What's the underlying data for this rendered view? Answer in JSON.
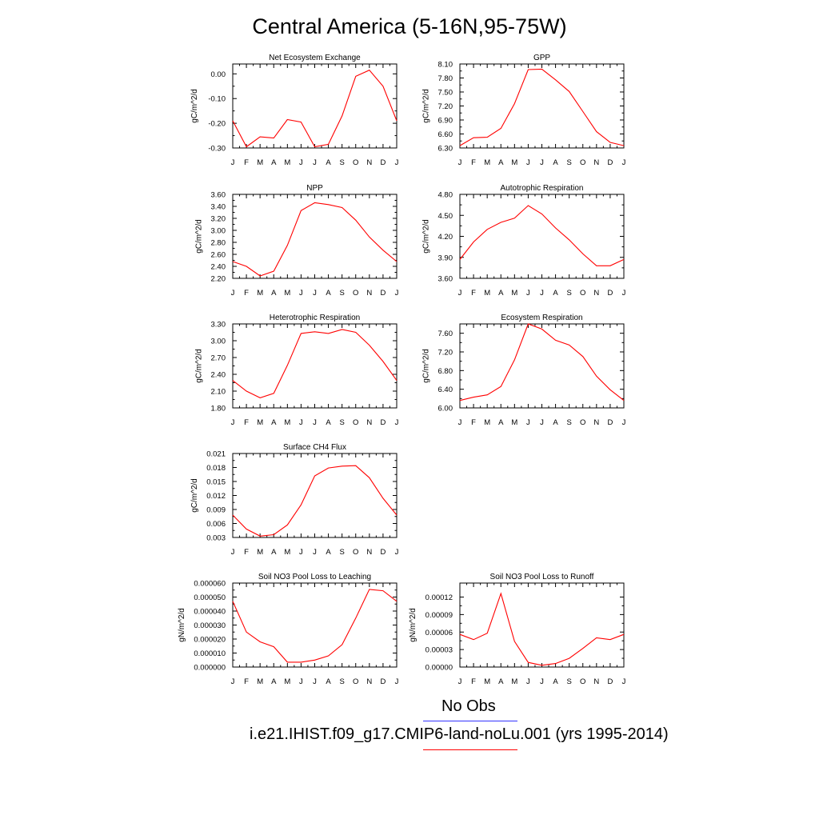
{
  "title": "Central America (5-16N,95-75W)",
  "months": [
    "J",
    "F",
    "M",
    "A",
    "M",
    "J",
    "J",
    "A",
    "S",
    "O",
    "N",
    "D",
    "J"
  ],
  "colors": {
    "model": "#ff0000",
    "obs": "#3333ff"
  },
  "legend": {
    "obs_label": "No Obs",
    "model_label": "i.e21.IHIST.f09_g17.CMIP6-land-noLu.001 (yrs 1995-2014)"
  },
  "chart_data": [
    {
      "type": "line",
      "title": "Net Ecosystem Exchange",
      "ylabel": "gC/m^2/d",
      "xlabel": "",
      "ylim": [
        -0.3,
        0.04
      ],
      "yticks": [
        "0.00",
        "-0.10",
        "-0.20",
        "-0.30"
      ],
      "ytick_values": [
        0.0,
        -0.1,
        -0.2,
        -0.3
      ],
      "series": [
        {
          "values": [
            -0.19,
            -0.295,
            -0.255,
            -0.26,
            -0.185,
            -0.195,
            -0.295,
            -0.285,
            -0.17,
            -0.01,
            0.015,
            -0.05,
            -0.19
          ]
        }
      ]
    },
    {
      "type": "line",
      "title": "GPP",
      "ylabel": "gC/m^2/d",
      "xlabel": "",
      "ylim": [
        6.3,
        8.1
      ],
      "yticks": [
        "8.10",
        "7.80",
        "7.50",
        "7.20",
        "6.90",
        "6.60",
        "6.30"
      ],
      "ytick_values": [
        8.1,
        7.8,
        7.5,
        7.2,
        6.9,
        6.6,
        6.3
      ],
      "series": [
        {
          "values": [
            6.35,
            6.52,
            6.53,
            6.72,
            7.25,
            7.98,
            7.99,
            7.76,
            7.51,
            7.08,
            6.65,
            6.42,
            6.35
          ]
        }
      ]
    },
    {
      "type": "line",
      "title": "NPP",
      "ylabel": "gC/m^2/d",
      "xlabel": "",
      "ylim": [
        2.2,
        3.6
      ],
      "yticks": [
        "3.60",
        "3.40",
        "3.20",
        "3.00",
        "2.80",
        "2.60",
        "2.40",
        "2.20"
      ],
      "ytick_values": [
        3.6,
        3.4,
        3.2,
        3.0,
        2.8,
        2.6,
        2.4,
        2.2
      ],
      "series": [
        {
          "values": [
            2.48,
            2.4,
            2.24,
            2.32,
            2.75,
            3.33,
            3.46,
            3.43,
            3.38,
            3.17,
            2.89,
            2.67,
            2.48
          ]
        }
      ]
    },
    {
      "type": "line",
      "title": "Autotrophic Respiration",
      "ylabel": "gC/m^2/d",
      "xlabel": "",
      "ylim": [
        3.6,
        4.8
      ],
      "yticks": [
        "4.80",
        "4.50",
        "4.20",
        "3.90",
        "3.60"
      ],
      "ytick_values": [
        4.8,
        4.5,
        4.2,
        3.9,
        3.6
      ],
      "series": [
        {
          "values": [
            3.87,
            4.12,
            4.3,
            4.4,
            4.46,
            4.64,
            4.52,
            4.32,
            4.15,
            3.95,
            3.78,
            3.78,
            3.87
          ]
        }
      ]
    },
    {
      "type": "line",
      "title": "Heterotrophic Respiration",
      "ylabel": "gC/m^2/d",
      "xlabel": "",
      "ylim": [
        1.8,
        3.3
      ],
      "yticks": [
        "3.30",
        "3.00",
        "2.70",
        "2.40",
        "2.10",
        "1.80"
      ],
      "ytick_values": [
        3.3,
        3.0,
        2.7,
        2.4,
        2.1,
        1.8
      ],
      "series": [
        {
          "values": [
            2.29,
            2.1,
            1.98,
            2.06,
            2.56,
            3.13,
            3.16,
            3.13,
            3.2,
            3.15,
            2.92,
            2.63,
            2.29
          ]
        }
      ]
    },
    {
      "type": "line",
      "title": "Ecosystem Respiration",
      "ylabel": "gC/m^2/d",
      "xlabel": "",
      "ylim": [
        6.0,
        7.8
      ],
      "yticks": [
        "7.60",
        "7.20",
        "6.80",
        "6.40",
        "6.00"
      ],
      "ytick_values": [
        7.6,
        7.2,
        6.8,
        6.4,
        6.0
      ],
      "series": [
        {
          "values": [
            6.16,
            6.23,
            6.28,
            6.46,
            7.03,
            7.8,
            7.69,
            7.45,
            7.35,
            7.1,
            6.68,
            6.39,
            6.16
          ]
        }
      ]
    },
    {
      "type": "line",
      "title": "Surface CH4 Flux",
      "ylabel": "gC/m^2/d",
      "xlabel": "",
      "ylim": [
        0.003,
        0.021
      ],
      "yticks": [
        "0.021",
        "0.018",
        "0.015",
        "0.012",
        "0.009",
        "0.006",
        "0.003"
      ],
      "ytick_values": [
        0.021,
        0.018,
        0.015,
        0.012,
        0.009,
        0.006,
        0.003
      ],
      "series": [
        {
          "values": [
            0.0078,
            0.0048,
            0.0033,
            0.0036,
            0.0057,
            0.01,
            0.0162,
            0.0179,
            0.0183,
            0.0184,
            0.0158,
            0.0114,
            0.0078
          ]
        }
      ]
    },
    {
      "type": "line",
      "title": "Soil NO3 Pool Loss to Leaching",
      "ylabel": "gN/m^2/d",
      "xlabel": "",
      "ylim": [
        0.0,
        6e-05
      ],
      "yticks": [
        "0.000060",
        "0.000050",
        "0.000040",
        "0.000030",
        "0.000020",
        "0.000010",
        "0.000000"
      ],
      "ytick_values": [
        6e-05,
        5e-05,
        4e-05,
        3e-05,
        2e-05,
        1e-05,
        0.0
      ],
      "series": [
        {
          "values": [
            4.7e-05,
            2.5e-05,
            1.8e-05,
            1.45e-05,
            3.5e-06,
            3.5e-06,
            5e-06,
            8e-06,
            1.6e-05,
            3.5e-05,
            5.55e-05,
            5.45e-05,
            4.7e-05
          ]
        }
      ]
    },
    {
      "type": "line",
      "title": "Soil NO3 Pool Loss to Runoff",
      "ylabel": "gN/m^2/d",
      "xlabel": "",
      "ylim": [
        0.0,
        0.000144
      ],
      "yticks": [
        "0.00012",
        "0.00009",
        "0.00006",
        "0.00003",
        "0.00000"
      ],
      "ytick_values": [
        0.00012,
        9e-05,
        6e-05,
        3e-05,
        0.0
      ],
      "series": [
        {
          "values": [
            5.6e-05,
            4.7e-05,
            5.8e-05,
            0.000126,
            4.4e-05,
            8e-06,
            3e-06,
            6e-06,
            1.5e-05,
            3.2e-05,
            5e-05,
            4.7e-05,
            5.6e-05
          ]
        }
      ]
    }
  ]
}
